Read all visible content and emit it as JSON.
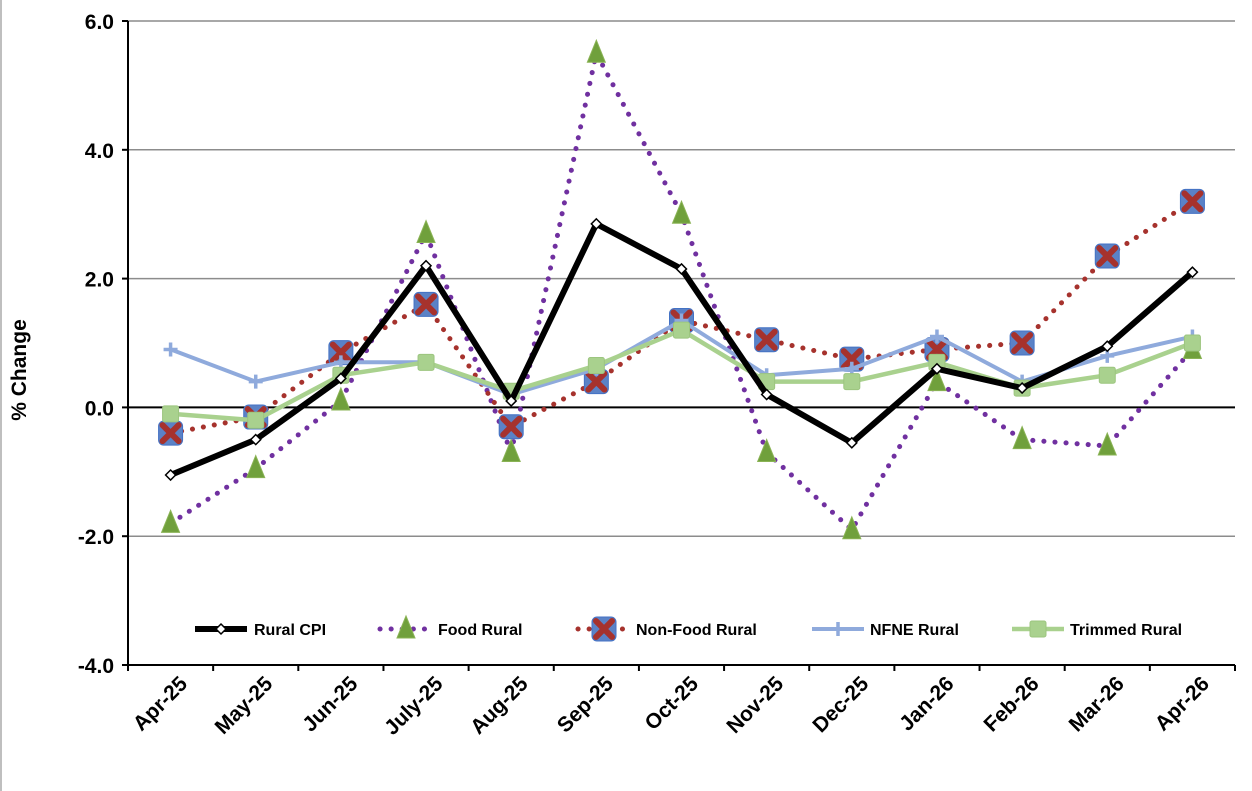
{
  "chart_data": {
    "type": "line",
    "title": "",
    "xlabel": "",
    "ylabel": "% Change",
    "ylim": [
      -4.0,
      6.0
    ],
    "yticks": [
      "-4.0",
      "-2.0",
      "0.0",
      "2.0",
      "4.0",
      "6.0"
    ],
    "yticks_values": [
      -4,
      -2,
      0,
      2,
      4,
      6
    ],
    "grid": "horizontal",
    "legend_position": "bottom-inside",
    "categories": [
      "Apr-25",
      "May-25",
      "Jun-25",
      "July-25",
      "Aug-25",
      "Sep-25",
      "Oct-25",
      "Nov-25",
      "Dec-25",
      "Jan-26",
      "Feb-26",
      "Mar-26",
      "Apr-26"
    ],
    "series": [
      {
        "name": "Rural CPI",
        "values": [
          -1.05,
          -0.5,
          0.45,
          2.2,
          0.1,
          2.85,
          2.15,
          0.2,
          -0.55,
          0.6,
          0.3,
          0.95,
          2.1
        ],
        "color": "#000000"
      },
      {
        "name": "Food Rural",
        "values": [
          -1.8,
          -0.95,
          0.1,
          2.7,
          -0.7,
          5.5,
          3.0,
          -0.7,
          -1.9,
          0.4,
          -0.5,
          -0.6,
          0.9
        ],
        "color": "#7030a0"
      },
      {
        "name": "Non-Food Rural",
        "values": [
          -0.4,
          -0.15,
          0.85,
          1.6,
          -0.3,
          0.4,
          1.35,
          1.05,
          0.75,
          0.9,
          1.0,
          2.35,
          3.2
        ],
        "color": "#a6322d"
      },
      {
        "name": "NFNE Rural",
        "values": [
          0.9,
          0.4,
          0.7,
          0.7,
          0.2,
          0.6,
          1.35,
          0.5,
          0.6,
          1.1,
          0.4,
          0.8,
          1.1
        ],
        "color": "#8faadc"
      },
      {
        "name": "Trimmed Rural",
        "values": [
          -0.1,
          -0.2,
          0.5,
          0.7,
          0.25,
          0.65,
          1.2,
          0.4,
          0.4,
          0.7,
          0.3,
          0.5,
          1.0
        ],
        "color": "#a9d18e"
      }
    ]
  }
}
